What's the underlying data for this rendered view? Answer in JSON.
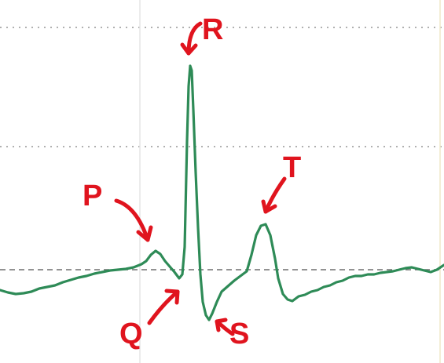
{
  "diagram": {
    "colors": {
      "background": "#ffffff",
      "trace": "#2e8b57",
      "annotation": "#e0141e",
      "gridline": "#b0b0b0",
      "baseline": "#6e6e6e"
    },
    "labels": {
      "p": "P",
      "q": "Q",
      "r": "R",
      "s": "S",
      "t": "T"
    }
  }
}
